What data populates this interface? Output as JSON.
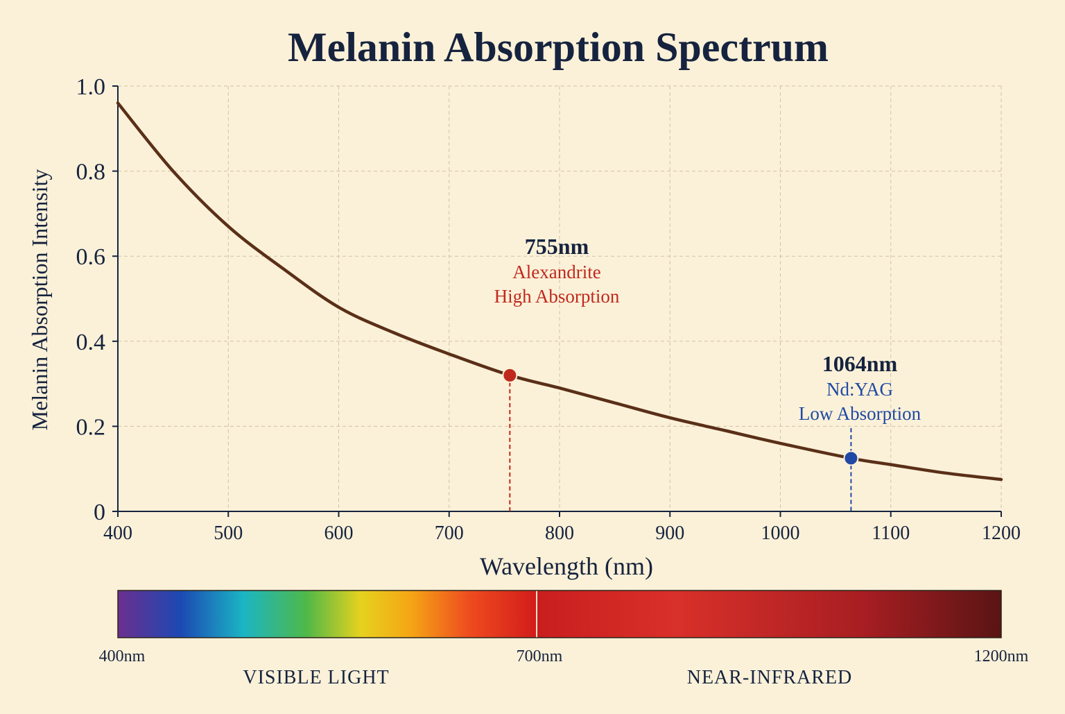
{
  "colors": {
    "background": "#fbf1d8",
    "text": "#16233f",
    "curve": "#5a2f18",
    "alexandrite": "#c0281e",
    "ndyag": "#1f49a4"
  },
  "chart_data": {
    "type": "line",
    "title": "Melanin Absorption Spectrum",
    "xlabel": "Wavelength (nm)",
    "ylabel": "Melanin Absorption Intensity",
    "xlim": [
      400,
      1200
    ],
    "ylim": [
      0,
      1.0
    ],
    "grid": true,
    "x_ticks": [
      400,
      500,
      600,
      700,
      800,
      900,
      1000,
      1100,
      1200
    ],
    "x_tick_labels": [
      "400",
      "500",
      "600",
      "700",
      "800",
      "900",
      "1000",
      "1100",
      "1200"
    ],
    "y_ticks": [
      0,
      0.2,
      0.4,
      0.6,
      0.8,
      1.0
    ],
    "y_tick_labels": [
      "0",
      "0.2",
      "0.4",
      "0.6",
      "0.8",
      "1.0"
    ],
    "series": [
      {
        "x": [
          400,
          450,
          500,
          550,
          600,
          650,
          700,
          755,
          800,
          850,
          900,
          950,
          1000,
          1064,
          1100,
          1150,
          1200
        ],
        "y": [
          0.96,
          0.8,
          0.67,
          0.57,
          0.48,
          0.42,
          0.37,
          0.32,
          0.29,
          0.255,
          0.22,
          0.19,
          0.16,
          0.125,
          0.11,
          0.09,
          0.075
        ]
      }
    ],
    "annotations": [
      {
        "x": 755,
        "y": 0.32,
        "wavelength_label": "755nm",
        "laser": "Alexandrite",
        "note": "High Absorption",
        "color": "#c0281e"
      },
      {
        "x": 1064,
        "y": 0.125,
        "wavelength_label": "1064nm",
        "laser": "Nd:YAG",
        "note": "Low Absorption",
        "color": "#1f49a4"
      }
    ]
  },
  "spectrum_bar": {
    "start_label": "400nm",
    "mid_label": "700nm",
    "end_label": "1200nm",
    "visible_label": "VISIBLE LIGHT",
    "nir_label": "NEAR-INFRARED"
  }
}
